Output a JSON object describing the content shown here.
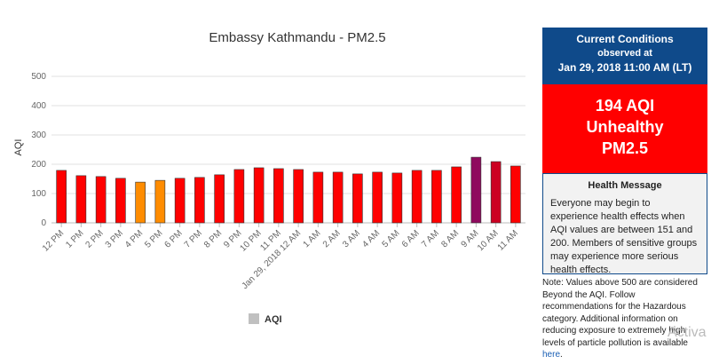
{
  "chart_data": {
    "type": "bar",
    "title": "Embassy Kathmandu - PM2.5",
    "y_label": "AQI",
    "categories": [
      "12 PM",
      "1 PM",
      "2 PM",
      "3 PM",
      "4 PM",
      "5 PM",
      "6 PM",
      "7 PM",
      "8 PM",
      "9 PM",
      "10 PM",
      "11 PM",
      "Jan 29, 2018 12 AM",
      "1 AM",
      "2 AM",
      "3 AM",
      "4 AM",
      "5 AM",
      "6 AM",
      "7 AM",
      "8 AM",
      "9 AM",
      "10 AM",
      "11 AM"
    ],
    "series": [
      {
        "name": "AQI",
        "color": "#c0c0c0",
        "values": [
          179,
          161,
          158,
          152,
          139,
          145,
          152,
          155,
          164,
          182,
          188,
          185,
          182,
          173,
          173,
          167,
          173,
          170,
          179,
          179,
          191,
          224,
          209,
          194
        ],
        "colors": [
          "#ff0000",
          "#ff0000",
          "#ff0000",
          "#ff0000",
          "#ff8c00",
          "#ff8c00",
          "#ff0000",
          "#ff0000",
          "#ff0000",
          "#ff0000",
          "#ff0000",
          "#ff0000",
          "#ff0000",
          "#ff0000",
          "#ff0000",
          "#ff0000",
          "#ff0000",
          "#ff0000",
          "#ff0000",
          "#ff0000",
          "#ff0000",
          "#8f0a5e",
          "#cc0022",
          "#ff0000"
        ]
      }
    ],
    "ylim": [
      0,
      500
    ],
    "yticks": [
      0,
      100,
      200,
      300,
      400,
      500
    ],
    "grid": true
  },
  "panel": {
    "header": [
      "Current Conditions",
      "observed at",
      "Jan 29, 2018 11:00 AM (LT)"
    ],
    "status": [
      "194 AQI",
      "Unhealthy",
      "PM2.5"
    ],
    "health_title": "Health Message",
    "health_text": "Everyone may begin to experience health effects when AQI values are between 151 and 200. Members of sensitive groups may experience more serious health effects.",
    "note": "Note: Values above 500 are considered Beyond the AQI. Follow recommendations for the Hazardous category. Additional information on reducing exposure to extremely high levels of particle pollution is available",
    "note_link": "here",
    "note_end": "."
  },
  "watermark": "Activa"
}
